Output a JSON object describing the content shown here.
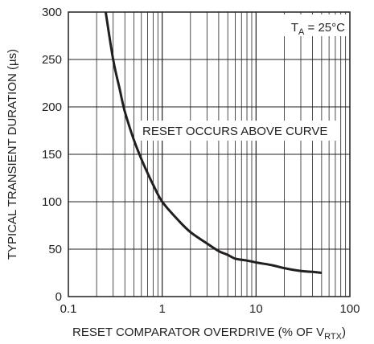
{
  "chart_data": {
    "type": "line",
    "title": "",
    "xlabel": {
      "main": "RESET COMPARATOR OVERDRIVE (% OF V",
      "sub": "RTX",
      "end": ")"
    },
    "ylabel": "TYPICAL TRANSIENT DURATION (µs)",
    "x_scale": "log",
    "xlim": [
      0.1,
      100
    ],
    "ylim": [
      0,
      300
    ],
    "x_ticks": [
      0.1,
      1,
      10,
      100
    ],
    "x_tick_labels": [
      "0.1",
      "1",
      "10",
      "100"
    ],
    "y_ticks": [
      0,
      50,
      100,
      150,
      200,
      250,
      300
    ],
    "y_tick_labels": [
      "0",
      "50",
      "100",
      "150",
      "200",
      "250",
      "300"
    ],
    "grid": true,
    "annotations": {
      "condition": {
        "main": "T",
        "sub": "A",
        "end": " = 25°C"
      },
      "region": "RESET OCCURS ABOVE CURVE"
    },
    "series": [
      {
        "x": [
          0.25,
          0.3,
          0.35,
          0.4,
          0.5,
          0.6,
          0.7,
          0.8,
          1.0,
          1.5,
          2.0,
          3.0,
          4.0,
          5.0,
          6.0,
          8.0,
          10,
          15,
          20,
          30,
          40,
          50
        ],
        "y": [
          300,
          250,
          220,
          195,
          165,
          145,
          130,
          118,
          100,
          80,
          68,
          56,
          48,
          44,
          40,
          38,
          36,
          33,
          30,
          27,
          26,
          25
        ]
      }
    ]
  }
}
